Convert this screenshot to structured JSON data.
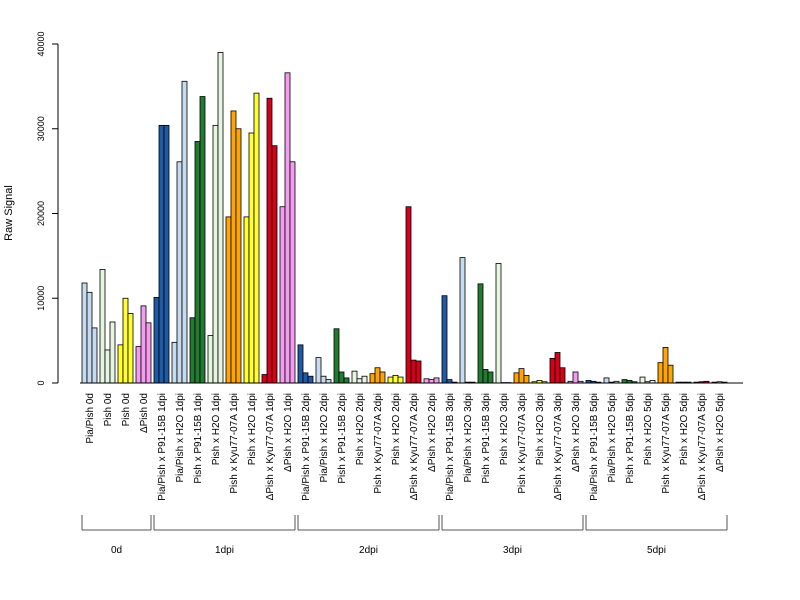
{
  "chart_data": {
    "type": "bar",
    "title": "",
    "xlabel": "",
    "ylabel": "Raw Signal",
    "ylim": [
      0,
      40000
    ],
    "yticks": [
      0,
      10000,
      20000,
      30000,
      40000
    ],
    "bars_per_group": 3,
    "categories": [
      "Pia/Pish 0d",
      "Pish 0d",
      "Pish 0d",
      "ΔPish 0d",
      "Pia/Pish x P91-15B 1dpi",
      "Pia/Pish x H2O 1dpi",
      "Pish x P91-15B 1dpi",
      "Pish x H2O 1dpi",
      "Pish x Kyu77-07A 1dpi",
      "Pish x H2O 1dpi",
      "ΔPish x Kyu77-07A 1dpi",
      "ΔPish x H2O 1dpi",
      "Pia/Pish x P91-15B 2dpi",
      "Pia/Pish x H2O 2dpi",
      "Pish x P91-15B 2dpi",
      "Pish x H2O 2dpi",
      "Pish x Kyu77-07A 2dpi",
      "Pish x H2O 2dpi",
      "ΔPish x Kyu77-07A 2dpi",
      "ΔPish x H2O 2dpi",
      "Pia/Pish x P91-15B 3dpi",
      "Pia/Pish x H2O 3dpi",
      "Pish x P91-15B 3dpi",
      "Pish x H2O 3dpi",
      "Pish x Kyu77-07A 3dpi",
      "Pish x H2O 3dpi",
      "ΔPish x Kyu77-07A 3dpi",
      "ΔPish x H2O 3dpi",
      "Pia/Pish x P91-15B 5dpi",
      "Pia/Pish x H2O 5dpi",
      "Pish x P91-15B 5dpi",
      "Pish x H2O 5dpi",
      "Pish x Kyu77-07A 5dpi",
      "Pish x H2O 5dpi",
      "ΔPish x Kyu77-07A 5dpi",
      "ΔPish x H2O 5dpi"
    ],
    "colors": [
      "#c6dbef",
      "#e5f5e0",
      "#ffff33",
      "#f49cf0",
      "#1f5aa6",
      "#c6dbef",
      "#237a33",
      "#e5f5e0",
      "#ffa500",
      "#ffff33",
      "#d7001a",
      "#f49cf0",
      "#1f5aa6",
      "#c6dbef",
      "#237a33",
      "#e5f5e0",
      "#ffa500",
      "#ffff33",
      "#d7001a",
      "#f49cf0",
      "#1f5aa6",
      "#c6dbef",
      "#237a33",
      "#e5f5e0",
      "#ffa500",
      "#ffff33",
      "#d7001a",
      "#f49cf0",
      "#1f5aa6",
      "#c6dbef",
      "#237a33",
      "#e5f5e0",
      "#ffa500",
      "#ffff33",
      "#d7001a",
      "#f49cf0"
    ],
    "values": [
      [
        11800,
        10700,
        6500
      ],
      [
        13400,
        3900,
        7200
      ],
      [
        4500,
        10000,
        8200
      ],
      [
        4300,
        9100,
        7100
      ],
      [
        10100,
        30400,
        30400
      ],
      [
        4800,
        26100,
        35600
      ],
      [
        7700,
        28500,
        33800
      ],
      [
        5600,
        30400,
        39000
      ],
      [
        19600,
        32100,
        30000
      ],
      [
        19600,
        29500,
        34200
      ],
      [
        1000,
        33600,
        28000
      ],
      [
        20800,
        36600,
        26100
      ],
      [
        4500,
        1200,
        800
      ],
      [
        3000,
        800,
        400
      ],
      [
        6400,
        1300,
        600
      ],
      [
        1400,
        500,
        800
      ],
      [
        1100,
        1800,
        1300
      ],
      [
        700,
        900,
        700
      ],
      [
        20800,
        2700,
        2600
      ],
      [
        500,
        400,
        600
      ],
      [
        10300,
        400,
        100
      ],
      [
        14800,
        100,
        100
      ],
      [
        11700,
        1600,
        1300
      ],
      [
        14100,
        50,
        50
      ],
      [
        1200,
        1700,
        900
      ],
      [
        150,
        300,
        150
      ],
      [
        2900,
        3600,
        1800
      ],
      [
        200,
        1300,
        200
      ],
      [
        300,
        200,
        100
      ],
      [
        600,
        100,
        200
      ],
      [
        400,
        300,
        150
      ],
      [
        700,
        150,
        300
      ],
      [
        2400,
        4200,
        2100
      ],
      [
        100,
        100,
        100
      ],
      [
        100,
        150,
        200
      ],
      [
        100,
        150,
        100
      ]
    ],
    "groups": [
      {
        "label": "0d",
        "start": 0,
        "end": 3
      },
      {
        "label": "1dpi",
        "start": 4,
        "end": 11
      },
      {
        "label": "2dpi",
        "start": 12,
        "end": 19
      },
      {
        "label": "3dpi",
        "start": 20,
        "end": 27
      },
      {
        "label": "5dpi",
        "start": 28,
        "end": 35
      }
    ]
  }
}
